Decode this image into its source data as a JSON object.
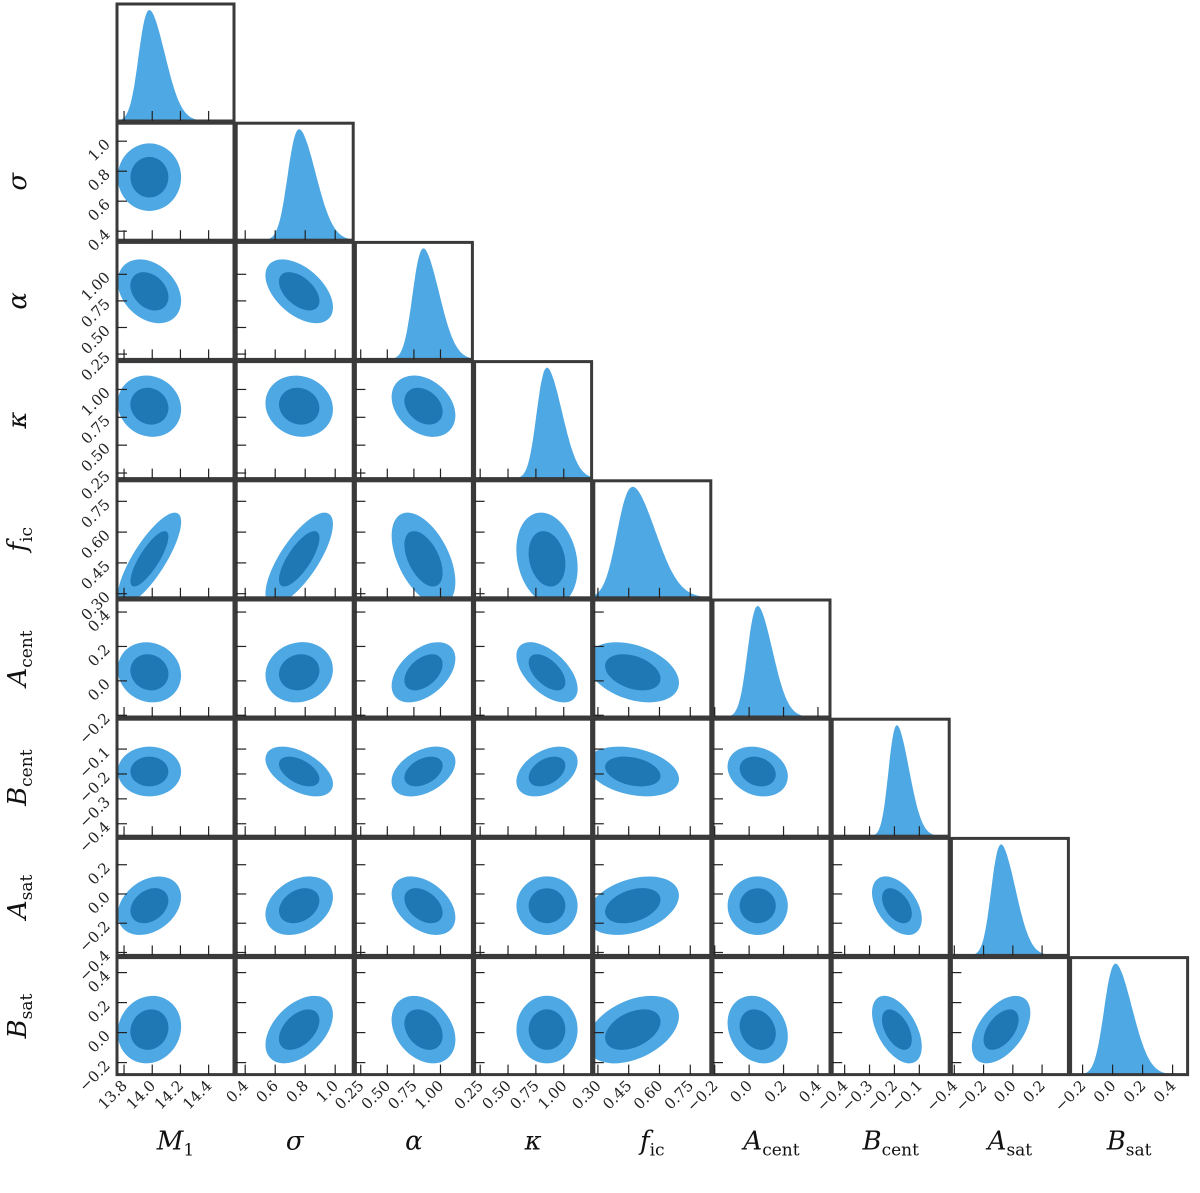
{
  "chart_data": {
    "type": "corner",
    "colors": {
      "inner": "#1f77b4",
      "outer": "#4ea8e4",
      "frame": "#3a3a3a",
      "ticks": "#222222"
    },
    "levels": [
      "inner",
      "outer"
    ],
    "parameters": [
      {
        "name": "M1",
        "label": "M",
        "sub": "1",
        "range": [
          13.75,
          14.58
        ],
        "ticks": [
          13.8,
          14.0,
          14.2,
          14.4
        ],
        "tick_labels": [
          "13.8",
          "14.0",
          "14.2",
          "14.4"
        ],
        "mean": 13.98,
        "sd": 0.09
      },
      {
        "name": "sigma",
        "label": "σ",
        "sub": "",
        "range": [
          0.34,
          1.12
        ],
        "ticks": [
          0.4,
          0.6,
          0.8,
          1.0
        ],
        "tick_labels": [
          "0.4",
          "0.6",
          "0.8",
          "1.0"
        ],
        "mean": 0.76,
        "sd": 0.09
      },
      {
        "name": "alpha",
        "label": "α",
        "sub": "",
        "range": [
          0.2,
          1.3
        ],
        "ticks": [
          0.25,
          0.5,
          0.75,
          1.0
        ],
        "tick_labels": [
          "0.25",
          "0.50",
          "0.75",
          "1.00"
        ],
        "mean": 0.84,
        "sd": 0.12
      },
      {
        "name": "kappa",
        "label": "κ",
        "sub": "",
        "range": [
          0.2,
          1.25
        ],
        "ticks": [
          0.25,
          0.5,
          0.75,
          1.0
        ],
        "tick_labels": [
          "0.25",
          "0.50",
          "0.75",
          "1.00"
        ],
        "mean": 0.85,
        "sd": 0.11
      },
      {
        "name": "f_ic",
        "label": "f",
        "sub": "ic",
        "range": [
          0.28,
          0.85
        ],
        "ticks": [
          0.3,
          0.45,
          0.6,
          0.75
        ],
        "tick_labels": [
          "0.30",
          "0.45",
          "0.60",
          "0.75"
        ],
        "mean": 0.47,
        "sd": 0.09
      },
      {
        "name": "A_cent",
        "label": "A",
        "sub": "cent",
        "range": [
          -0.21,
          0.47
        ],
        "ticks": [
          -0.2,
          0.0,
          0.2,
          0.4
        ],
        "tick_labels": [
          "−0.2",
          "0.0",
          "0.2",
          "0.4"
        ],
        "mean": 0.05,
        "sd": 0.07
      },
      {
        "name": "B_cent",
        "label": "B",
        "sub": "cent",
        "range": [
          -0.45,
          0.02
        ],
        "ticks": [
          -0.4,
          -0.3,
          -0.2,
          -0.1
        ],
        "tick_labels": [
          "−0.4",
          "−0.3",
          "−0.2",
          "−0.1"
        ],
        "mean": -0.19,
        "sd": 0.04
      },
      {
        "name": "A_sat",
        "label": "A",
        "sub": "sat",
        "range": [
          -0.42,
          0.38
        ],
        "ticks": [
          -0.4,
          -0.2,
          0.0,
          0.2
        ],
        "tick_labels": [
          "−0.4",
          "−0.2",
          "0.0",
          "0.2"
        ],
        "mean": -0.08,
        "sd": 0.08
      },
      {
        "name": "B_sat",
        "label": "B",
        "sub": "sat",
        "range": [
          -0.28,
          0.5
        ],
        "ticks": [
          -0.2,
          0.0,
          0.2,
          0.4
        ],
        "tick_labels": [
          "−0.2",
          "0.0",
          "0.2",
          "0.4"
        ],
        "mean": 0.02,
        "sd": 0.09
      }
    ],
    "correlations": {
      "1_0": 0.0,
      "2_0": -0.3,
      "2_1": -0.5,
      "3_0": -0.1,
      "3_1": -0.1,
      "3_2": -0.3,
      "4_0": 0.8,
      "4_1": 0.75,
      "4_2": -0.5,
      "4_3": -0.2,
      "5_0": -0.1,
      "5_1": 0.1,
      "5_2": 0.45,
      "5_3": -0.55,
      "5_4": -0.35,
      "6_0": 0.0,
      "6_1": -0.5,
      "6_2": 0.4,
      "6_3": 0.4,
      "6_4": -0.3,
      "6_5": -0.2,
      "7_0": 0.3,
      "7_1": 0.3,
      "7_2": -0.4,
      "7_3": 0.0,
      "7_4": 0.35,
      "7_5": 0.0,
      "7_6": -0.45,
      "8_0": 0.1,
      "8_1": 0.45,
      "8_2": -0.3,
      "8_3": 0.0,
      "8_4": 0.4,
      "8_5": -0.2,
      "8_6": -0.5,
      "8_7": 0.5
    }
  }
}
